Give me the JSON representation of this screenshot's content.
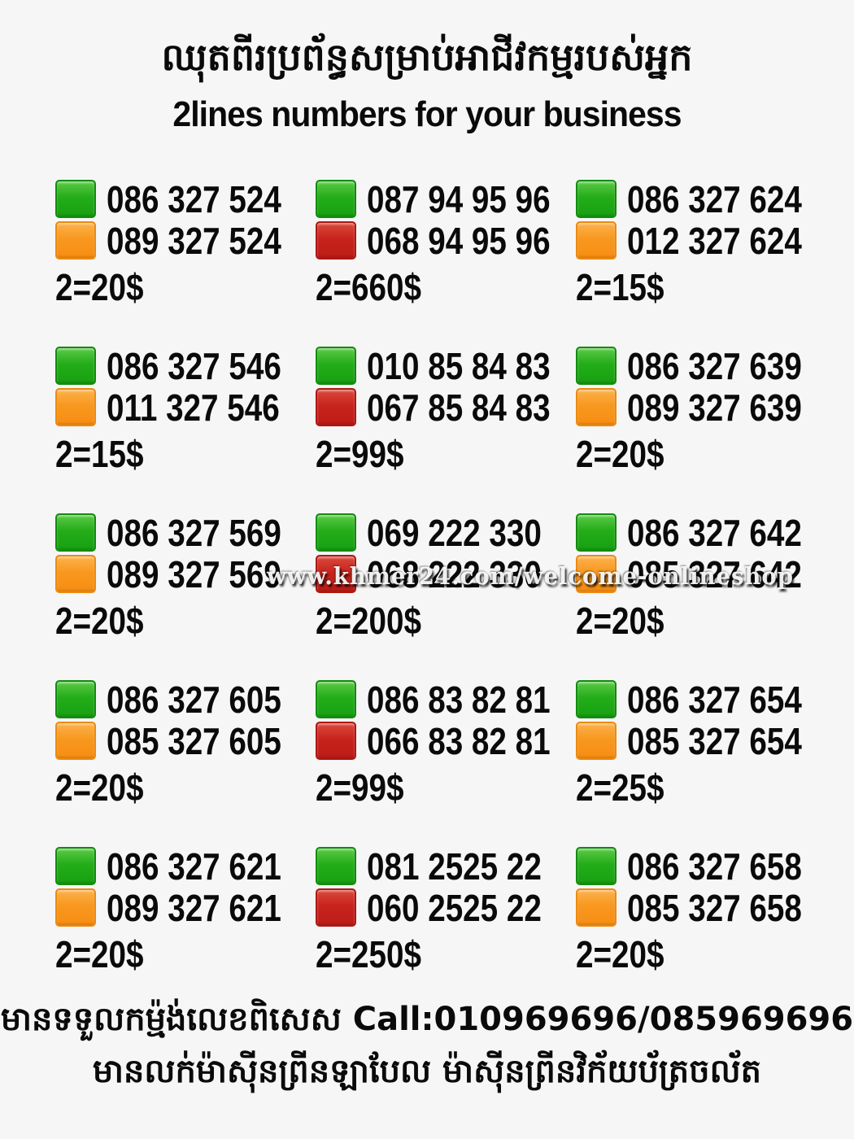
{
  "header": {
    "title_khmer": "ឈុតពីរប្រព័ន្ធសម្រាប់អាជីវកម្មរបស់អ្នក",
    "subtitle": "2lines numbers for your business"
  },
  "colors": {
    "background": "#f6f6f6",
    "text": "#0a0a0a",
    "green_square": "#1ca514",
    "orange_square": "#f7941d",
    "red_square": "#c8231d"
  },
  "watermark": "www.khmer24.com/welcome-onlineshop",
  "listings": [
    {
      "line1": {
        "color": "green",
        "number": "086 327 524"
      },
      "line2": {
        "color": "orange",
        "number": "089 327 524"
      },
      "price": "2=20$"
    },
    {
      "line1": {
        "color": "green",
        "number": "087 94 95 96"
      },
      "line2": {
        "color": "red",
        "number": "068 94 95 96"
      },
      "price": "2=660$"
    },
    {
      "line1": {
        "color": "green",
        "number": "086 327 624"
      },
      "line2": {
        "color": "orange",
        "number": "012 327 624"
      },
      "price": "2=15$"
    },
    {
      "line1": {
        "color": "green",
        "number": "086 327 546"
      },
      "line2": {
        "color": "orange",
        "number": "011 327 546"
      },
      "price": "2=15$"
    },
    {
      "line1": {
        "color": "green",
        "number": "010 85 84 83"
      },
      "line2": {
        "color": "red",
        "number": "067 85 84 83"
      },
      "price": "2=99$"
    },
    {
      "line1": {
        "color": "green",
        "number": "086 327 639"
      },
      "line2": {
        "color": "orange",
        "number": "089 327 639"
      },
      "price": "2=20$"
    },
    {
      "line1": {
        "color": "green",
        "number": "086 327 569"
      },
      "line2": {
        "color": "orange",
        "number": "089 327 569"
      },
      "price": "2=20$"
    },
    {
      "line1": {
        "color": "green",
        "number": "069 222 330"
      },
      "line2": {
        "color": "red",
        "number": "068 222 330"
      },
      "price": "2=200$"
    },
    {
      "line1": {
        "color": "green",
        "number": "086 327 642"
      },
      "line2": {
        "color": "orange",
        "number": "085 327 642"
      },
      "price": "2=20$"
    },
    {
      "line1": {
        "color": "green",
        "number": "086 327 605"
      },
      "line2": {
        "color": "orange",
        "number": "085 327 605"
      },
      "price": "2=20$"
    },
    {
      "line1": {
        "color": "green",
        "number": "086 83 82 81"
      },
      "line2": {
        "color": "red",
        "number": "066 83 82 81"
      },
      "price": "2=99$"
    },
    {
      "line1": {
        "color": "green",
        "number": "086 327 654"
      },
      "line2": {
        "color": "orange",
        "number": "085 327 654"
      },
      "price": "2=25$"
    },
    {
      "line1": {
        "color": "green",
        "number": "086 327 621"
      },
      "line2": {
        "color": "orange",
        "number": "089 327 621"
      },
      "price": "2=20$"
    },
    {
      "line1": {
        "color": "green",
        "number": "081 2525 22"
      },
      "line2": {
        "color": "red",
        "number": "060 2525 22"
      },
      "price": "2=250$"
    },
    {
      "line1": {
        "color": "green",
        "number": "086 327 658"
      },
      "line2": {
        "color": "orange",
        "number": "085 327 658"
      },
      "price": "2=20$"
    }
  ],
  "footer": {
    "line1": "មានទទួលកម្ម៉ង់លេខពិសេស Call:010969696/085969696",
    "line2": "មានលក់ម៉ាស៊ីនព្រីនឡាបែល ម៉ាស៊ីនព្រីនវិក័យប័ត្រចល័ត"
  }
}
